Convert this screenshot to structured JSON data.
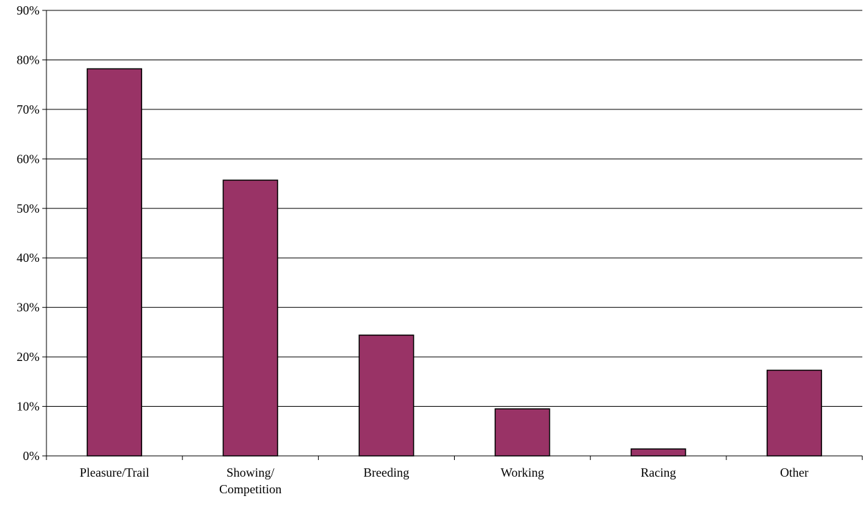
{
  "colors": {
    "bar_fill": "#993366",
    "bar_stroke": "#000000",
    "grid": "#000000",
    "axis": "#000000",
    "background": "#ffffff"
  },
  "chart_data": {
    "type": "bar",
    "categories": [
      [
        "Pleasure/Trail"
      ],
      [
        "Showing/",
        "Competition"
      ],
      [
        "Breeding"
      ],
      [
        "Working"
      ],
      [
        "Racing"
      ],
      [
        "Other"
      ]
    ],
    "values": [
      78.2,
      55.7,
      24.4,
      9.5,
      1.4,
      17.3
    ],
    "title": "",
    "xlabel": "",
    "ylabel": "",
    "ylim": [
      0,
      90
    ],
    "ytick_step": 10,
    "ytick_labels": [
      "0%",
      "10%",
      "20%",
      "30%",
      "40%",
      "50%",
      "60%",
      "70%",
      "80%",
      "90%"
    ],
    "grid": "horizontal",
    "legend": "none"
  }
}
